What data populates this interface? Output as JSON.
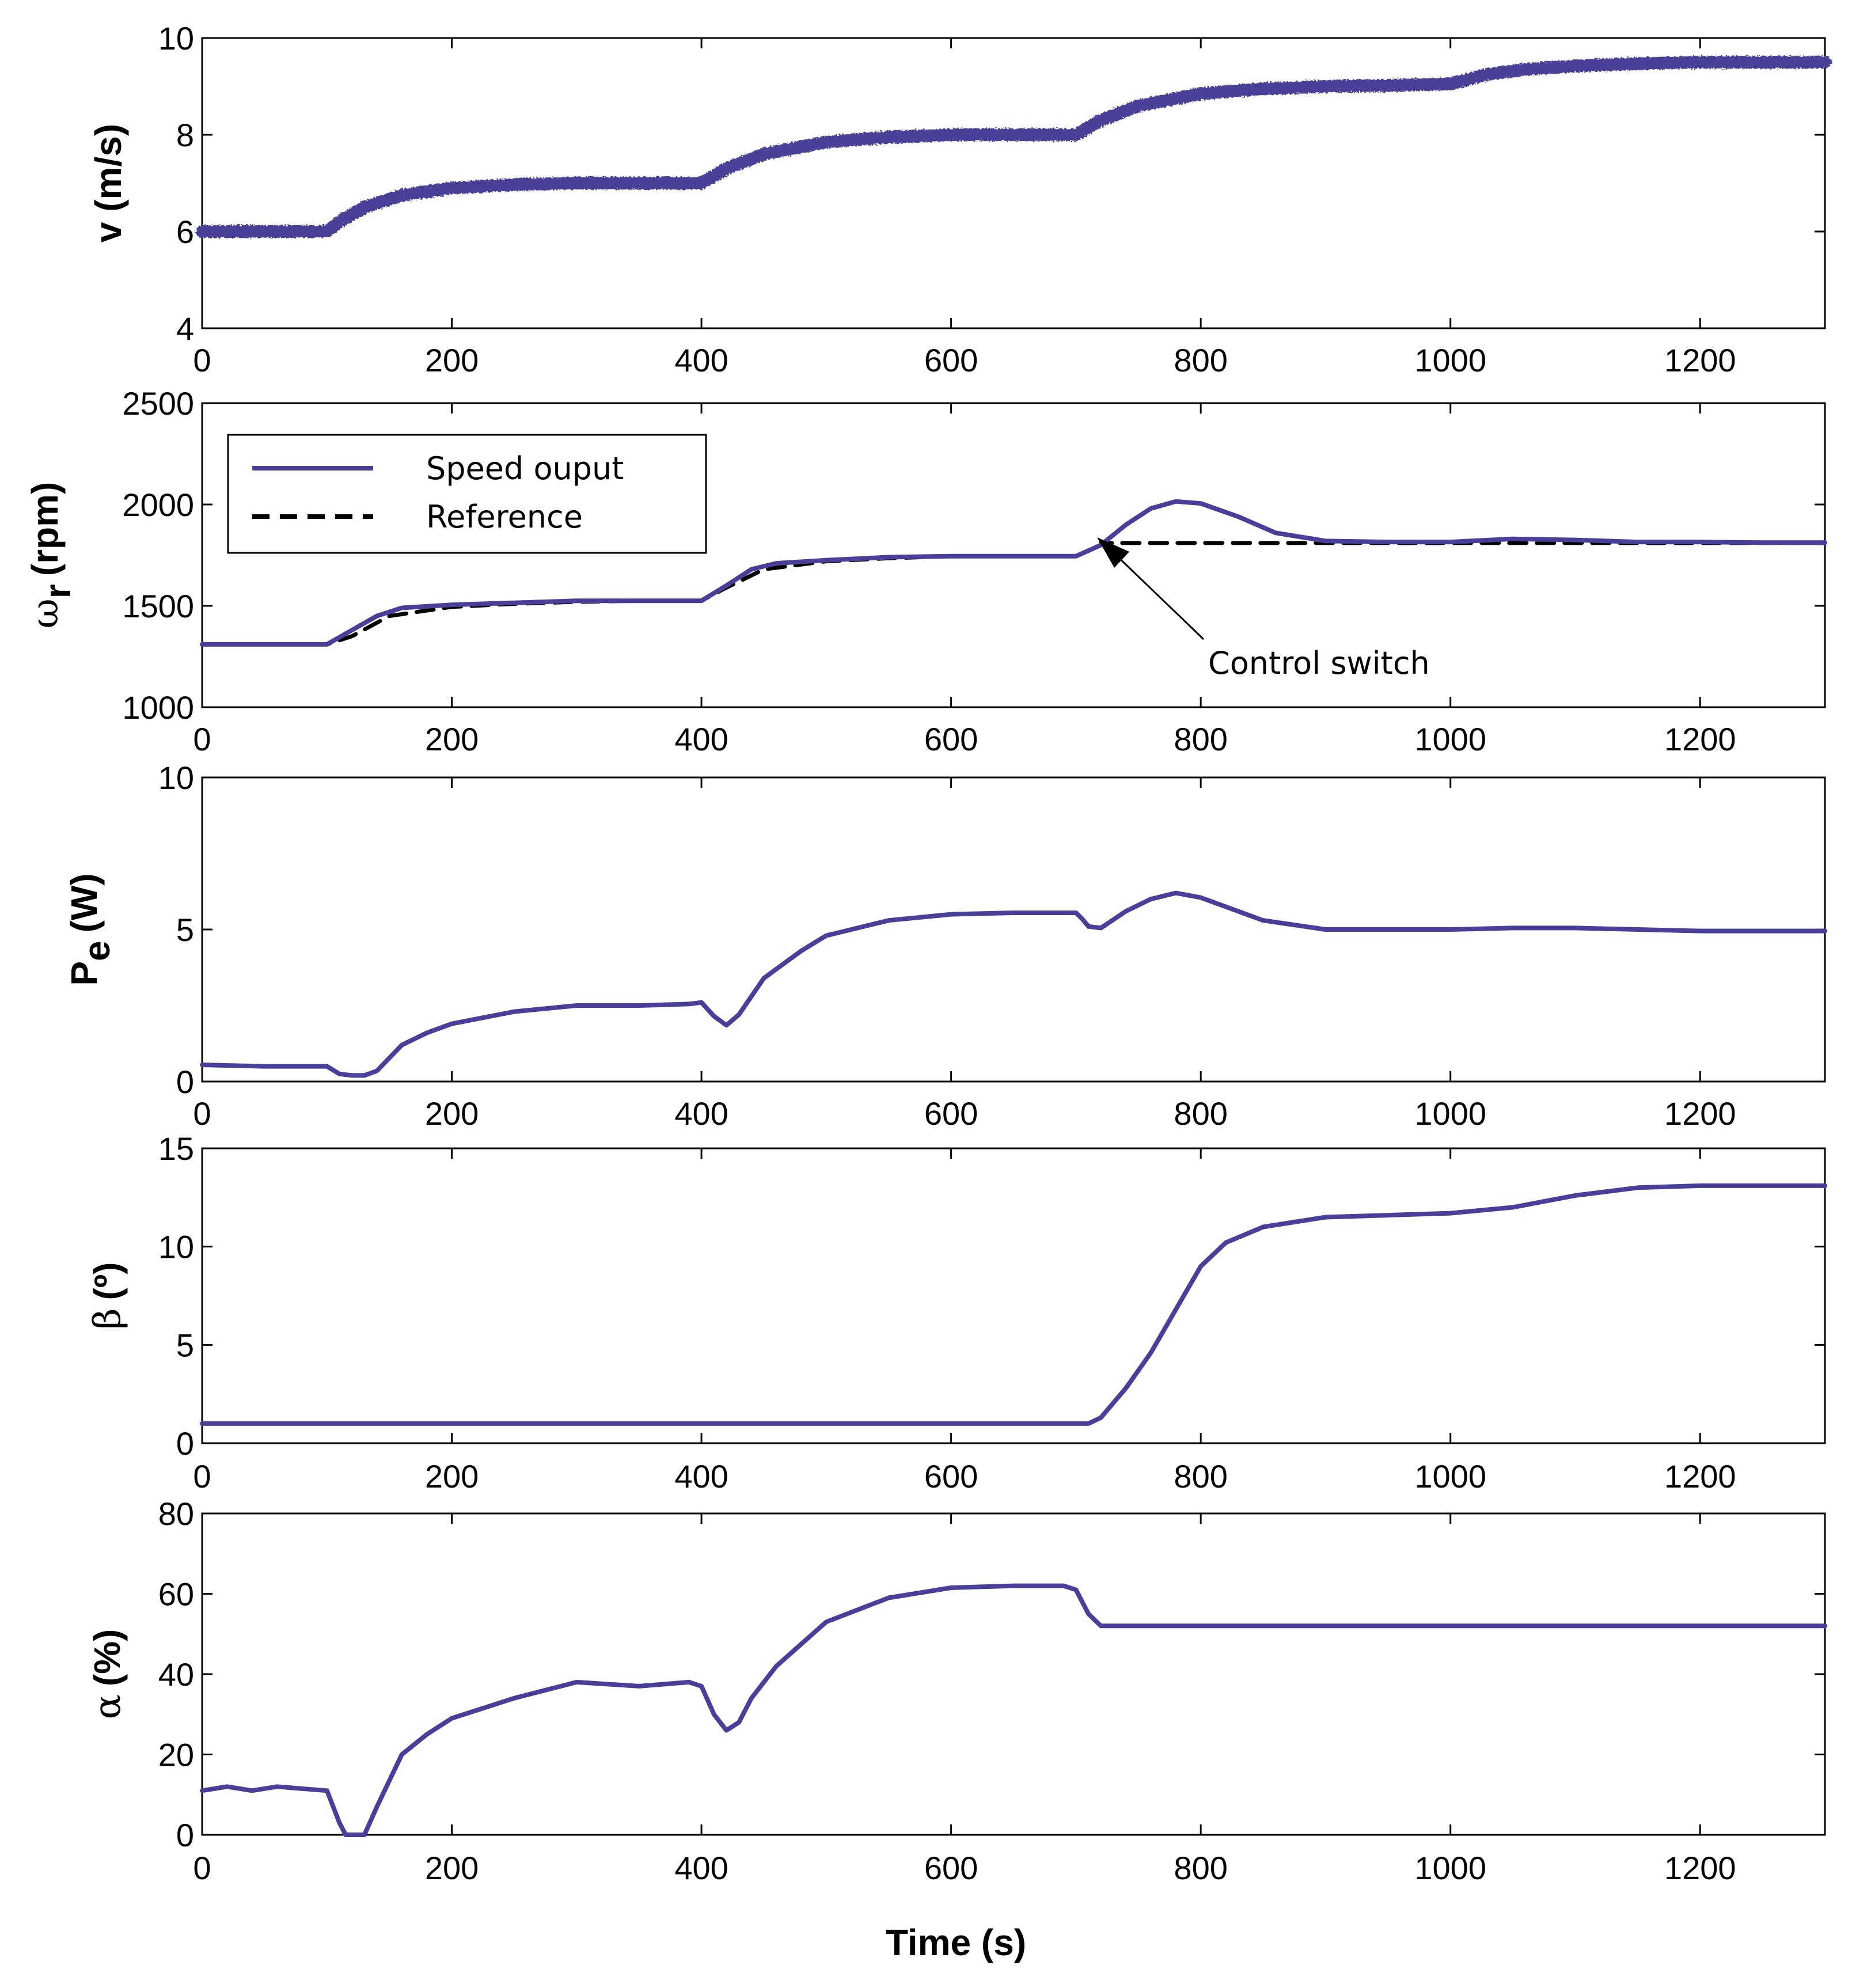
{
  "colors": {
    "series": "#4a3f98",
    "reference": "#000000",
    "frame": "#000000"
  },
  "chart_data": [
    {
      "type": "line",
      "id": "wind-speed",
      "ylabel": "v (m/s)",
      "xlim": [
        0,
        1300
      ],
      "ylim": [
        4,
        10
      ],
      "xticks": [
        0,
        200,
        400,
        600,
        800,
        1000,
        1200
      ],
      "yticks": [
        4,
        6,
        8,
        10
      ],
      "series": [
        {
          "name": "v",
          "style": "thick",
          "x": [
            0,
            100,
            110,
            130,
            160,
            200,
            250,
            300,
            350,
            400,
            420,
            450,
            500,
            550,
            600,
            650,
            700,
            720,
            750,
            800,
            850,
            900,
            950,
            1000,
            1030,
            1060,
            1100,
            1150,
            1200,
            1250,
            1300
          ],
          "y": [
            6.0,
            6.0,
            6.2,
            6.5,
            6.75,
            6.9,
            6.97,
            7.0,
            7.0,
            7.0,
            7.3,
            7.6,
            7.85,
            7.95,
            8.0,
            8.0,
            8.0,
            8.3,
            8.6,
            8.85,
            8.95,
            9.0,
            9.02,
            9.05,
            9.25,
            9.35,
            9.42,
            9.47,
            9.5,
            9.5,
            9.5
          ]
        }
      ]
    },
    {
      "type": "line",
      "id": "rotor-speed",
      "ylabel": "ω_r (rpm)",
      "ylabel_main": "ω",
      "ylabel_sub": "r",
      "ylabel_rest": "(rpm)",
      "xlim": [
        0,
        1300
      ],
      "ylim": [
        1000,
        2500
      ],
      "xticks": [
        0,
        200,
        400,
        600,
        800,
        1000,
        1200
      ],
      "yticks": [
        1000,
        1500,
        2000,
        2500
      ],
      "legend": {
        "position": "top-left",
        "entries": [
          "Speed ouput",
          "Reference"
        ]
      },
      "annotation": {
        "text": "Control switch",
        "target_x": 720,
        "target_y": 1790,
        "text_x": 805,
        "text_y": 1240
      },
      "series": [
        {
          "name": "Speed ouput",
          "style": "solid",
          "x": [
            0,
            100,
            120,
            140,
            160,
            200,
            250,
            300,
            350,
            400,
            420,
            440,
            460,
            500,
            550,
            600,
            650,
            700,
            720,
            740,
            760,
            780,
            800,
            830,
            860,
            900,
            950,
            1000,
            1050,
            1100,
            1150,
            1200,
            1250,
            1300
          ],
          "y": [
            1310,
            1310,
            1380,
            1450,
            1490,
            1505,
            1515,
            1525,
            1525,
            1525,
            1600,
            1680,
            1710,
            1725,
            1740,
            1745,
            1745,
            1745,
            1800,
            1900,
            1980,
            2015,
            2005,
            1940,
            1860,
            1820,
            1815,
            1815,
            1830,
            1825,
            1815,
            1815,
            1812,
            1812
          ]
        },
        {
          "name": "Reference",
          "style": "dashed",
          "x": [
            0,
            100,
            120,
            150,
            200,
            250,
            300,
            350,
            400,
            420,
            450,
            500,
            550,
            600,
            650,
            700,
            720,
            720,
            800,
            900,
            1000,
            1100,
            1200,
            1300
          ],
          "y": [
            1310,
            1310,
            1350,
            1450,
            1495,
            1510,
            1520,
            1525,
            1525,
            1590,
            1680,
            1720,
            1735,
            1745,
            1745,
            1745,
            1800,
            1810,
            1810,
            1810,
            1810,
            1810,
            1810,
            1810
          ]
        }
      ]
    },
    {
      "type": "line",
      "id": "electric-power",
      "ylabel": "P_e (W)",
      "ylabel_main": "P",
      "ylabel_sub": "e",
      "ylabel_rest": "(W)",
      "xlim": [
        0,
        1300
      ],
      "ylim": [
        0,
        10
      ],
      "xticks": [
        0,
        200,
        400,
        600,
        800,
        1000,
        1200
      ],
      "yticks": [
        0,
        5,
        10
      ],
      "series": [
        {
          "name": "P_e",
          "style": "solid",
          "x": [
            0,
            50,
            100,
            110,
            120,
            130,
            140,
            160,
            180,
            200,
            250,
            300,
            350,
            390,
            400,
            410,
            420,
            430,
            450,
            480,
            500,
            550,
            600,
            650,
            700,
            705,
            710,
            720,
            740,
            760,
            780,
            800,
            850,
            900,
            950,
            1000,
            1050,
            1100,
            1150,
            1200,
            1250,
            1300
          ],
          "y": [
            0.55,
            0.5,
            0.5,
            0.25,
            0.2,
            0.2,
            0.35,
            1.2,
            1.6,
            1.9,
            2.3,
            2.5,
            2.5,
            2.55,
            2.6,
            2.15,
            1.85,
            2.2,
            3.4,
            4.3,
            4.8,
            5.3,
            5.5,
            5.55,
            5.55,
            5.35,
            5.1,
            5.05,
            5.6,
            6.0,
            6.2,
            6.05,
            5.3,
            5.0,
            5.0,
            5.0,
            5.05,
            5.05,
            5.0,
            4.95,
            4.95,
            4.95
          ]
        }
      ]
    },
    {
      "type": "line",
      "id": "pitch-angle",
      "ylabel": "β (º)",
      "ylabel_main": "β",
      "ylabel_rest": "(º)",
      "xlim": [
        0,
        1300
      ],
      "ylim": [
        0,
        15
      ],
      "xticks": [
        0,
        200,
        400,
        600,
        800,
        1000,
        1200
      ],
      "yticks": [
        0,
        5,
        10,
        15
      ],
      "series": [
        {
          "name": "β",
          "style": "solid",
          "x": [
            0,
            100,
            200,
            300,
            400,
            500,
            600,
            700,
            710,
            720,
            740,
            760,
            780,
            800,
            820,
            850,
            900,
            950,
            1000,
            1050,
            1100,
            1150,
            1200,
            1250,
            1300
          ],
          "y": [
            1.0,
            1.0,
            1.0,
            1.0,
            1.0,
            1.0,
            1.0,
            1.0,
            1.0,
            1.3,
            2.8,
            4.6,
            6.8,
            9.0,
            10.2,
            11.0,
            11.5,
            11.6,
            11.7,
            12.0,
            12.6,
            13.0,
            13.1,
            13.1,
            13.1
          ]
        }
      ]
    },
    {
      "type": "line",
      "id": "duty-cycle",
      "ylabel": "α (%)",
      "ylabel_main": "α",
      "ylabel_rest": "(%)",
      "xlabel": "Time (s)",
      "xlim": [
        0,
        1300
      ],
      "ylim": [
        0,
        80
      ],
      "xticks": [
        0,
        200,
        400,
        600,
        800,
        1000,
        1200
      ],
      "yticks": [
        0,
        20,
        40,
        60,
        80
      ],
      "series": [
        {
          "name": "α",
          "style": "solid",
          "x": [
            0,
            20,
            40,
            60,
            80,
            100,
            110,
            115,
            130,
            140,
            160,
            180,
            200,
            250,
            300,
            350,
            390,
            400,
            410,
            420,
            430,
            440,
            460,
            500,
            550,
            600,
            650,
            690,
            700,
            710,
            720,
            800,
            900,
            1000,
            1100,
            1200,
            1300
          ],
          "y": [
            11,
            12,
            11,
            12,
            11.5,
            11,
            3,
            0,
            0,
            7,
            20,
            25,
            29,
            34,
            38,
            37,
            38,
            37,
            30,
            26,
            28,
            34,
            42,
            53,
            59,
            61.5,
            62,
            62,
            61,
            55,
            52,
            52,
            52,
            52,
            52,
            52,
            52
          ]
        }
      ]
    }
  ]
}
